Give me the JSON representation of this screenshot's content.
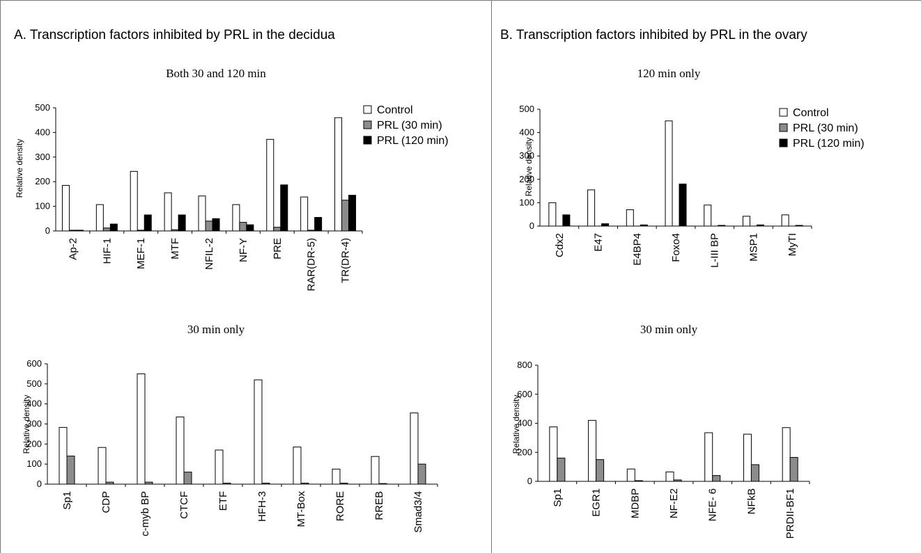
{
  "panels": [
    {
      "title": "A. Transcription factors inhibited by PRL in the decidua"
    },
    {
      "title": "B. Transcription factors inhibited by PRL in the ovary"
    }
  ],
  "legend": [
    "Control",
    "PRL (30 min)",
    "PRL (120 min)"
  ],
  "colors": {
    "control": "#ffffff",
    "prl30": "#8c8c8c",
    "prl120": "#000000",
    "stroke": "#000000"
  },
  "chart_data": [
    {
      "type": "bar",
      "title": "Both 30 and 120 min",
      "ylabel": "Relative density",
      "ylim": [
        0,
        500
      ],
      "yticks": [
        0,
        100,
        200,
        300,
        400,
        500
      ],
      "categories": [
        "Ap-2",
        "HIF-1",
        "MEF-1",
        "MTF",
        "NFIL-2",
        "NF-Y",
        "PRE",
        "RAR(DR-5)",
        "TR(DR-4)"
      ],
      "series": [
        {
          "name": "Control",
          "values": [
            185,
            107,
            242,
            155,
            142,
            107,
            372,
            138,
            460
          ]
        },
        {
          "name": "PRL (30 min)",
          "values": [
            3,
            12,
            3,
            5,
            40,
            35,
            15,
            3,
            125
          ]
        },
        {
          "name": "PRL (120 min)",
          "values": [
            3,
            28,
            65,
            65,
            50,
            25,
            187,
            55,
            145
          ]
        }
      ],
      "legend": "right"
    },
    {
      "type": "bar",
      "title": "120 min only",
      "ylabel": "Relative density",
      "ylim": [
        0,
        500
      ],
      "yticks": [
        0,
        100,
        200,
        300,
        400,
        500
      ],
      "categories": [
        "Cdx2",
        "E47",
        "E4BP4",
        "Foxo4",
        "L-III BP",
        "MSP1",
        "MyTI"
      ],
      "series": [
        {
          "name": "Control",
          "values": [
            100,
            155,
            70,
            450,
            90,
            42,
            48
          ]
        },
        {
          "name": "PRL (30 min)",
          "values": [
            0,
            0,
            0,
            0,
            0,
            0,
            0
          ]
        },
        {
          "name": "PRL (120 min)",
          "values": [
            48,
            10,
            5,
            180,
            3,
            5,
            3
          ]
        }
      ],
      "legend": "right"
    },
    {
      "type": "bar",
      "title": "30 min only",
      "ylabel": "Relative density",
      "ylim": [
        0,
        600
      ],
      "yticks": [
        0,
        100,
        200,
        300,
        400,
        500,
        600
      ],
      "categories": [
        "Sp1",
        "CDP",
        "c-myb BP",
        "CTCF",
        "ETF",
        "HFH-3",
        "MT-Box",
        "RORE",
        "RREB",
        "Smad3/4"
      ],
      "series": [
        {
          "name": "Control",
          "values": [
            283,
            183,
            550,
            335,
            170,
            520,
            185,
            75,
            138,
            355
          ]
        },
        {
          "name": "PRL (30 min)",
          "values": [
            140,
            10,
            10,
            60,
            5,
            5,
            5,
            5,
            3,
            100
          ]
        }
      ]
    },
    {
      "type": "bar",
      "title": "30 min only",
      "ylabel": "Relative density",
      "ylim": [
        0,
        800
      ],
      "yticks": [
        0,
        200,
        400,
        600,
        800
      ],
      "categories": [
        "Sp1",
        "EGR1",
        "MDBP",
        "NF-E2",
        "NFE- 6",
        "NFkB",
        "PRDII-BF1"
      ],
      "series": [
        {
          "name": "Control",
          "values": [
            375,
            420,
            85,
            65,
            335,
            325,
            370
          ]
        },
        {
          "name": "PRL (30 min)",
          "values": [
            160,
            150,
            5,
            10,
            40,
            115,
            165
          ]
        }
      ]
    }
  ]
}
